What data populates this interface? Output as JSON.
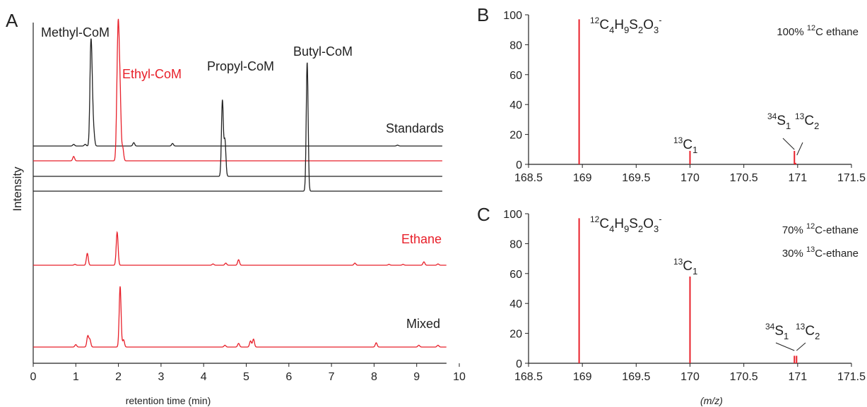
{
  "colors": {
    "black": "#222222",
    "red": "#e8202a"
  },
  "chart_data": [
    {
      "panel": "A",
      "type": "line",
      "xlabel": "retention time (min)",
      "ylabel": "Intensity",
      "xlim": [
        0,
        10
      ],
      "xticks": [
        "0",
        "1",
        "2",
        "3",
        "4",
        "5",
        "6",
        "7",
        "8",
        "9",
        "10"
      ],
      "x_axis_max": 9.7,
      "grid": false,
      "groups": [
        {
          "label": "Standards",
          "label_color": "black"
        },
        {
          "label": "Ethane",
          "label_color": "red"
        },
        {
          "label": "Mixed",
          "label_color": "black"
        }
      ],
      "peak_labels": [
        {
          "text": "Methyl-CoM",
          "color": "black"
        },
        {
          "text": "Ethyl-CoM",
          "color": "red"
        },
        {
          "text": "Propyl-CoM",
          "color": "black"
        },
        {
          "text": "Butyl-CoM",
          "color": "black"
        }
      ],
      "series": [
        {
          "group": "Standards",
          "color": "black",
          "x_end": 9.6,
          "peaks": [
            [
              1.35,
              1.0
            ],
            [
              1.38,
              0.55
            ],
            [
              1.42,
              0.15
            ],
            [
              0.95,
              0.02
            ],
            [
              1.22,
              0.02
            ],
            [
              2.36,
              0.04
            ],
            [
              3.27,
              0.03
            ],
            [
              8.55,
              0.01
            ]
          ]
        },
        {
          "group": "Standards",
          "color": "red",
          "x_end": 9.6,
          "peaks": [
            [
              1.97,
              0.48
            ],
            [
              2.0,
              1.0
            ],
            [
              2.04,
              0.55
            ],
            [
              2.1,
              0.12
            ],
            [
              0.95,
              0.04
            ]
          ]
        },
        {
          "group": "Standards",
          "color": "black",
          "x_end": 9.6,
          "peaks": [
            [
              4.44,
              0.95
            ],
            [
              4.5,
              0.45
            ]
          ]
        },
        {
          "group": "Standards",
          "color": "black",
          "x_end": 9.6,
          "peaks": [
            [
              6.43,
              1.0
            ]
          ]
        },
        {
          "group": "Ethane",
          "color": "red",
          "x_end": 9.7,
          "peaks": [
            [
              0.98,
              0.02
            ],
            [
              1.27,
              0.28
            ],
            [
              1.97,
              0.78
            ],
            [
              4.22,
              0.03
            ],
            [
              4.52,
              0.05
            ],
            [
              4.82,
              0.13
            ],
            [
              7.55,
              0.05
            ],
            [
              8.35,
              0.02
            ],
            [
              8.68,
              0.02
            ],
            [
              9.17,
              0.08
            ],
            [
              9.5,
              0.03
            ]
          ]
        },
        {
          "group": "Mixed",
          "color": "red",
          "x_end": 9.7,
          "peaks": [
            [
              1.0,
              0.04
            ],
            [
              1.28,
              0.18
            ],
            [
              1.33,
              0.12
            ],
            [
              2.04,
              1.0
            ],
            [
              2.12,
              0.12
            ],
            [
              4.5,
              0.03
            ],
            [
              4.82,
              0.06
            ],
            [
              5.1,
              0.1
            ],
            [
              5.17,
              0.13
            ],
            [
              8.05,
              0.07
            ],
            [
              9.05,
              0.03
            ],
            [
              9.5,
              0.03
            ]
          ]
        }
      ]
    },
    {
      "panel": "B",
      "type": "bar",
      "xlabel": "",
      "ylabel": "",
      "xlim": [
        168.5,
        171.5
      ],
      "ylim": [
        0,
        100
      ],
      "xticks": [
        "168.5",
        "169",
        "169.5",
        "170",
        "170.5",
        "171",
        "171.5"
      ],
      "yticks": [
        "0",
        "20",
        "40",
        "60",
        "80",
        "100"
      ],
      "grid": false,
      "sticks": [
        {
          "mz": 168.97,
          "value": 97
        },
        {
          "mz": 170.0,
          "value": 9
        },
        {
          "mz": 170.97,
          "value": 9
        },
        {
          "mz": 170.98,
          "value": 1
        }
      ],
      "annotations": {
        "formula": {
          "main": "12",
          "parts": [
            "C",
            "4",
            "H",
            "9",
            "S",
            "2",
            "O",
            "3",
            "-"
          ]
        },
        "c13_1": {
          "sup": "13",
          "base": "C",
          "sub": "1"
        },
        "s34_1": {
          "sup": "34",
          "base": "S",
          "sub": "1"
        },
        "c13_2": {
          "sup": "13",
          "base": "C",
          "sub": "2"
        },
        "condition_lines": [
          {
            "pre": "100% ",
            "sup": "12",
            "post": "C ethane"
          }
        ]
      }
    },
    {
      "panel": "C",
      "type": "bar",
      "xlabel": "(m/z)",
      "ylabel": "",
      "xlim": [
        168.5,
        171.5
      ],
      "ylim": [
        0,
        100
      ],
      "xticks": [
        "168.5",
        "169",
        "169.5",
        "170",
        "170.5",
        "171",
        "171.5"
      ],
      "yticks": [
        "0",
        "20",
        "40",
        "60",
        "80",
        "100"
      ],
      "grid": false,
      "sticks": [
        {
          "mz": 168.97,
          "value": 97
        },
        {
          "mz": 170.0,
          "value": 58
        },
        {
          "mz": 170.97,
          "value": 5
        },
        {
          "mz": 170.99,
          "value": 5
        }
      ],
      "annotations": {
        "formula": {
          "main": "12",
          "parts": [
            "C",
            "4",
            "H",
            "9",
            "S",
            "2",
            "O",
            "3",
            "-"
          ]
        },
        "c13_1": {
          "sup": "13",
          "base": "C",
          "sub": "1"
        },
        "s34_1": {
          "sup": "34",
          "base": "S",
          "sub": "1"
        },
        "c13_2": {
          "sup": "13",
          "base": "C",
          "sub": "2"
        },
        "condition_lines": [
          {
            "pre": "70% ",
            "sup": "12",
            "post": "C-ethane"
          },
          {
            "pre": "30% ",
            "sup": "13",
            "post": "C-ethane"
          }
        ]
      }
    }
  ]
}
